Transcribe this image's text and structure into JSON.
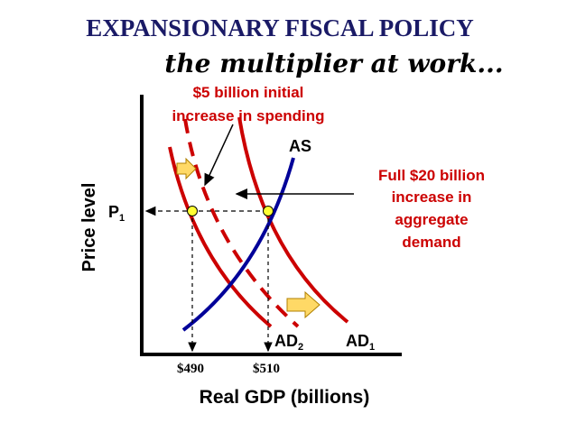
{
  "header": {
    "title": "EXPANSIONARY FISCAL POLICY",
    "subtitle": "the multiplier at work..."
  },
  "annotations": {
    "initial": [
      "$5 billion initial",
      "increase in spending"
    ],
    "full": [
      "Full $20 billion",
      "increase in",
      "aggregate",
      "demand"
    ]
  },
  "axes": {
    "y_label": "Price level",
    "x_label": "Real GDP (billions)"
  },
  "curves": {
    "as": "AS",
    "ad2": {
      "text": "AD",
      "sub": "2"
    },
    "ad1": {
      "text": "AD",
      "sub": "1"
    }
  },
  "price": {
    "text": "P",
    "sub": "1"
  },
  "gdp": [
    "$490",
    "$510"
  ]
}
